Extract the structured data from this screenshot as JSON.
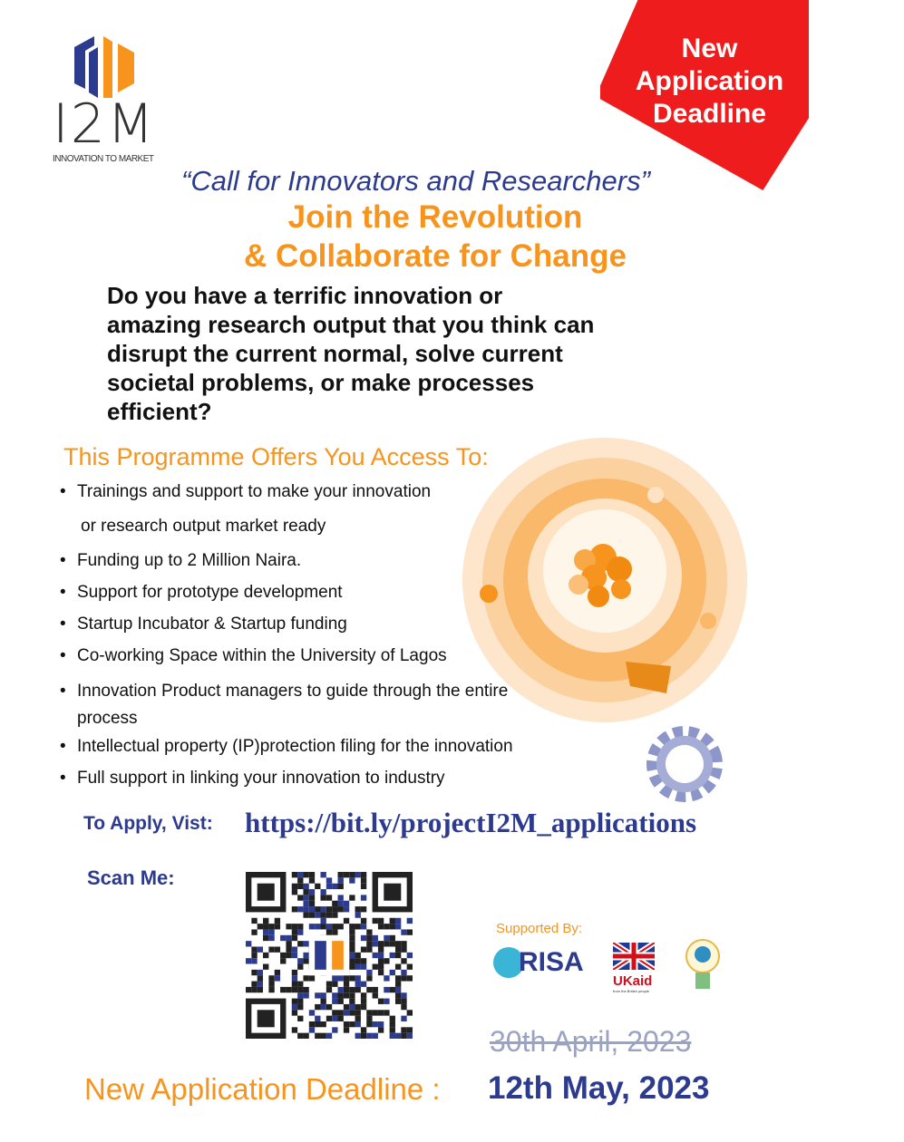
{
  "logo": {
    "name": "I2M",
    "tagline": "INNOVATION TO MARKET"
  },
  "badge": {
    "line1": "New",
    "line2": "Application",
    "line3": "Deadline"
  },
  "headline": {
    "call": "“Call for Innovators and Researchers”",
    "join1": "Join the Revolution",
    "join2": "& Collaborate for Change"
  },
  "question": "Do you have a terrific innovation or amazing research output that you think can disrupt the current normal, solve current societal problems, or make processes efficient?",
  "offers": {
    "title": "This Programme Offers You Access To:",
    "items": [
      "Trainings and support to make your innovation",
      "or research output market ready",
      "Funding up to 2 Million Naira.",
      "Support for prototype development",
      "Startup Incubator & Startup funding",
      "Co-working Space within the University of Lagos",
      "Innovation Product managers to guide through the entire process",
      "Intellectual property (IP)protection filing for the innovation",
      "Full support in linking your innovation to industry"
    ]
  },
  "apply": {
    "label": "To Apply, Vist:",
    "url": "https://bit.ly/projectI2M_applications"
  },
  "scan": {
    "label": "Scan Me:"
  },
  "supported": {
    "label": "Supported By:",
    "sponsors": [
      "RISA",
      "UKaid",
      "University of Lagos"
    ],
    "ukaid_sub": "from the British people"
  },
  "deadline": {
    "old": "30th April, 2023",
    "label": "New Application Deadline :",
    "date": "12th May, 2023"
  },
  "colors": {
    "navy": "#2d3b8e",
    "orange": "#f7941d",
    "red": "#ee1c1c"
  }
}
